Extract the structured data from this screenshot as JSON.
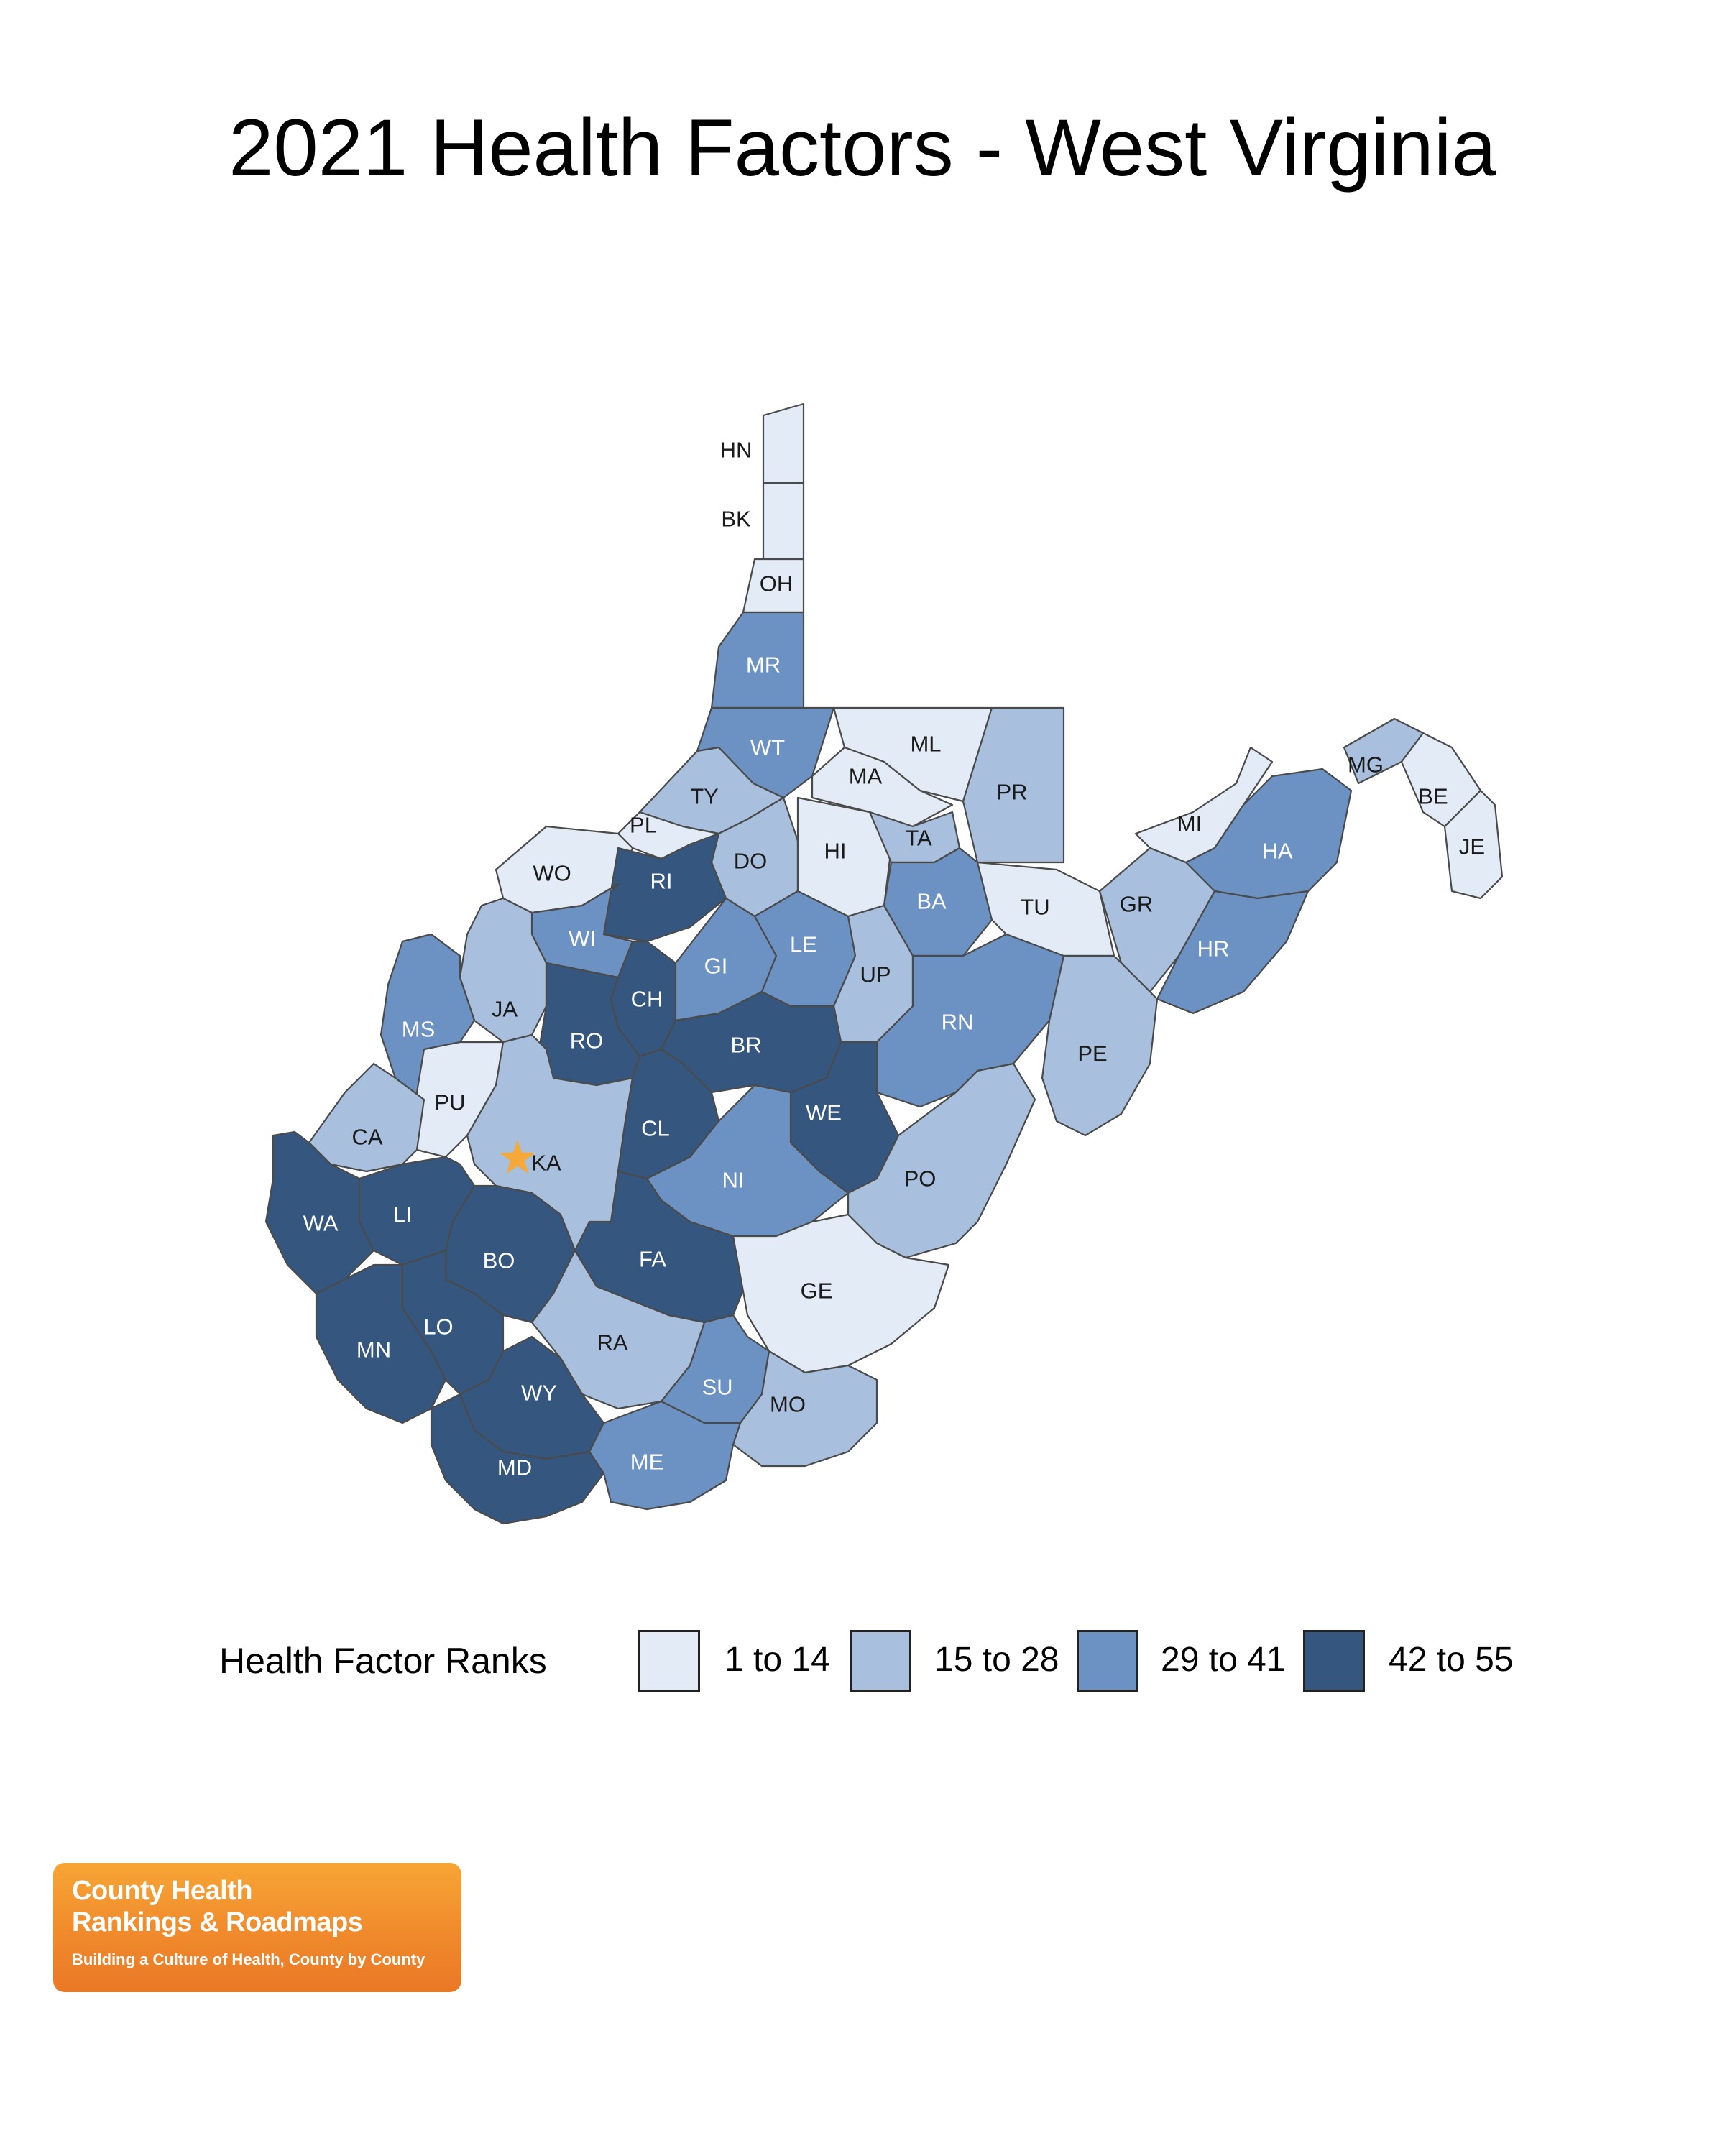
{
  "title": "2021 Health Factors - West Virginia",
  "legend": {
    "title": "Health Factor Ranks",
    "bins": [
      {
        "label": "1 to 14",
        "color": "#e2ebf6"
      },
      {
        "label": "15 to 28",
        "color": "#a8bfdd"
      },
      {
        "label": "29 to 41",
        "color": "#6c92c3"
      },
      {
        "label": "42 to 55",
        "color": "#35577f"
      }
    ]
  },
  "capital_marker": {
    "county": "KA",
    "icon": "star-icon",
    "color": "#f4a93a"
  },
  "counties": [
    {
      "id": "HN",
      "bin": 0
    },
    {
      "id": "BK",
      "bin": 0
    },
    {
      "id": "OH",
      "bin": 0
    },
    {
      "id": "MR",
      "bin": 2
    },
    {
      "id": "WT",
      "bin": 2
    },
    {
      "id": "ML",
      "bin": 0
    },
    {
      "id": "MA",
      "bin": 0
    },
    {
      "id": "PR",
      "bin": 1
    },
    {
      "id": "TY",
      "bin": 1
    },
    {
      "id": "PL",
      "bin": 0
    },
    {
      "id": "WO",
      "bin": 0
    },
    {
      "id": "DO",
      "bin": 1
    },
    {
      "id": "HI",
      "bin": 0
    },
    {
      "id": "TA",
      "bin": 1
    },
    {
      "id": "RI",
      "bin": 3
    },
    {
      "id": "WI",
      "bin": 2
    },
    {
      "id": "BA",
      "bin": 2
    },
    {
      "id": "TU",
      "bin": 0
    },
    {
      "id": "MG",
      "bin": 1
    },
    {
      "id": "BE",
      "bin": 0
    },
    {
      "id": "JE",
      "bin": 0
    },
    {
      "id": "MI",
      "bin": 0
    },
    {
      "id": "HA",
      "bin": 2
    },
    {
      "id": "GR",
      "bin": 1
    },
    {
      "id": "HR",
      "bin": 2
    },
    {
      "id": "JA",
      "bin": 1
    },
    {
      "id": "MS",
      "bin": 2
    },
    {
      "id": "CH",
      "bin": 3
    },
    {
      "id": "GI",
      "bin": 2
    },
    {
      "id": "LE",
      "bin": 2
    },
    {
      "id": "UP",
      "bin": 1
    },
    {
      "id": "RN",
      "bin": 2
    },
    {
      "id": "RO",
      "bin": 3
    },
    {
      "id": "BR",
      "bin": 3
    },
    {
      "id": "PE",
      "bin": 1
    },
    {
      "id": "PU",
      "bin": 0
    },
    {
      "id": "CA",
      "bin": 1
    },
    {
      "id": "KA",
      "bin": 1
    },
    {
      "id": "CL",
      "bin": 3
    },
    {
      "id": "WE",
      "bin": 3
    },
    {
      "id": "NI",
      "bin": 2
    },
    {
      "id": "PO",
      "bin": 1
    },
    {
      "id": "WA",
      "bin": 3
    },
    {
      "id": "LI",
      "bin": 3
    },
    {
      "id": "BO",
      "bin": 3
    },
    {
      "id": "FA",
      "bin": 3
    },
    {
      "id": "GE",
      "bin": 0
    },
    {
      "id": "MN",
      "bin": 3
    },
    {
      "id": "LO",
      "bin": 3
    },
    {
      "id": "RA",
      "bin": 1
    },
    {
      "id": "SU",
      "bin": 2
    },
    {
      "id": "WY",
      "bin": 3
    },
    {
      "id": "MO",
      "bin": 1
    },
    {
      "id": "MD",
      "bin": 3
    },
    {
      "id": "ME",
      "bin": 2
    }
  ],
  "logo": {
    "line1": "County Health",
    "line2": "Rankings & Roadmaps",
    "tagline": "Building a Culture of Health, County by County"
  }
}
